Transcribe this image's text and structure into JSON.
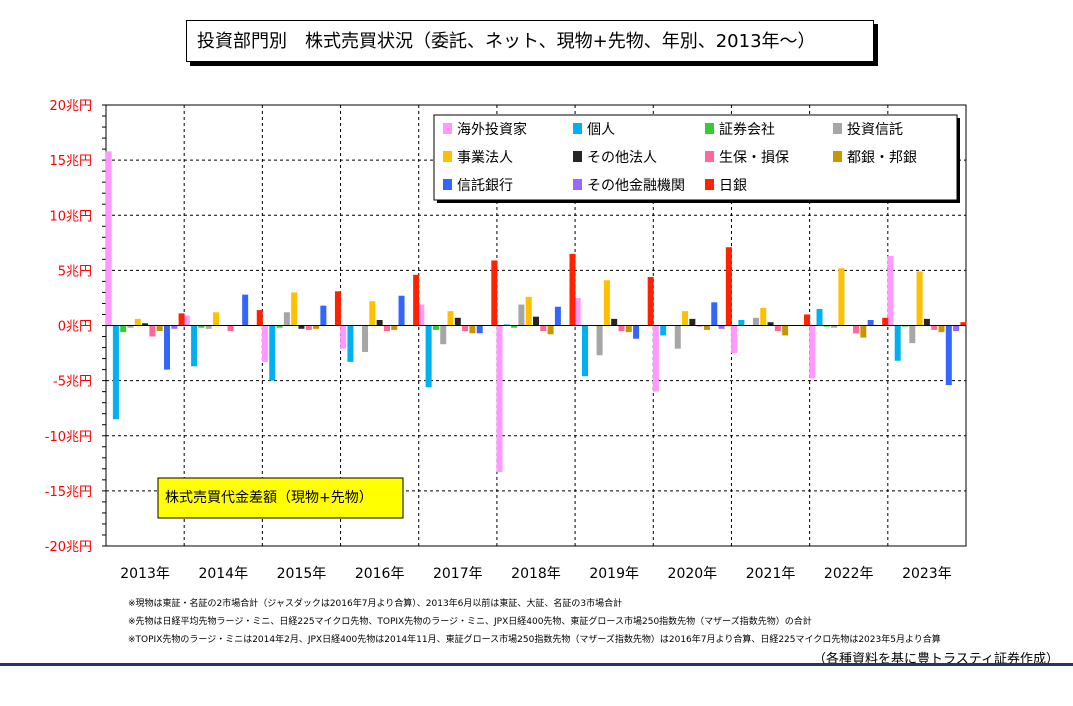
{
  "title": "投資部門別　株式売買状況（委託、ネット、現物+先物、年別、2013年～）",
  "notes": [
    "※現物は東証・名証の2市場合計（ジャスダックは2016年7月より合算）、2013年6月以前は東証、大証、名証の3市場合計",
    "※先物は日経平均先物ラージ・ミニ、日経225マイクロ先物、TOPIX先物のラージ・ミニ、JPX日経400先物、東証グロース市場250指数先物（マザーズ指数先物）の合計",
    "※TOPIX先物のラージ・ミニは2014年2月、JPX日経400先物は2014年11月、東証グロース市場250指数先物（マザーズ指数先物）は2016年7月より合算、日経225マイクロ先物は2023年5月より合算"
  ],
  "source": "（各種資料を基に豊トラスティ証券作成）",
  "chart_data": {
    "type": "bar",
    "annotation": "株式売買代金差額（現物+先物）",
    "ylim": [
      -20,
      20
    ],
    "yticks": [
      {
        "v": 20,
        "label": "20兆円"
      },
      {
        "v": 15,
        "label": "15兆円"
      },
      {
        "v": 10,
        "label": "10兆円"
      },
      {
        "v": 5,
        "label": "5兆円"
      },
      {
        "v": 0,
        "label": "0兆円"
      },
      {
        "v": -5,
        "label": "-5兆円"
      },
      {
        "v": -10,
        "label": "-10兆円"
      },
      {
        "v": -15,
        "label": "-15兆円"
      },
      {
        "v": -20,
        "label": "-20兆円"
      }
    ],
    "grid": true,
    "legend_position": "top-right",
    "categories": [
      "2013年",
      "2014年",
      "2015年",
      "2016年",
      "2017年",
      "2018年",
      "2019年",
      "2020年",
      "2021年",
      "2022年",
      "2023年"
    ],
    "series": [
      {
        "name": "海外投資家",
        "color": "#ff99ff",
        "values": [
          15.8,
          0.9,
          -3.3,
          -2.1,
          1.9,
          -13.3,
          2.5,
          -6.0,
          -2.5,
          -4.8,
          6.3
        ]
      },
      {
        "name": "個人",
        "color": "#00b0f0",
        "values": [
          -8.5,
          -3.7,
          -5.0,
          -3.3,
          -5.6,
          0.1,
          -4.6,
          -0.9,
          0.5,
          1.5,
          -3.2
        ]
      },
      {
        "name": "証券会社",
        "color": "#33cc33",
        "values": [
          -0.6,
          -0.2,
          -0.2,
          0.0,
          -0.4,
          -0.2,
          0.0,
          0.0,
          0.0,
          -0.1,
          -0.1
        ]
      },
      {
        "name": "投資信託",
        "color": "#a6a6a6",
        "values": [
          -0.2,
          -0.3,
          1.2,
          -2.4,
          -1.7,
          1.9,
          -2.7,
          -2.1,
          0.7,
          -0.2,
          -1.6
        ]
      },
      {
        "name": "事業法人",
        "color": "#ffc000",
        "values": [
          0.6,
          1.2,
          3.0,
          2.2,
          1.3,
          2.6,
          4.1,
          1.3,
          1.6,
          5.2,
          4.9
        ]
      },
      {
        "name": "その他法人",
        "color": "#262626",
        "values": [
          0.2,
          0.0,
          -0.3,
          0.5,
          0.7,
          0.8,
          0.6,
          0.6,
          0.3,
          0.0,
          0.6
        ]
      },
      {
        "name": "生保・損保",
        "color": "#ff6699",
        "values": [
          -1.0,
          -0.5,
          -0.4,
          -0.5,
          -0.5,
          -0.5,
          -0.5,
          -0.1,
          -0.5,
          -0.7,
          -0.4
        ]
      },
      {
        "name": "都銀・邦銀",
        "color": "#c89600",
        "values": [
          -0.5,
          0.0,
          -0.3,
          -0.4,
          -0.7,
          -0.8,
          -0.6,
          -0.4,
          -0.9,
          -1.1,
          -0.6
        ]
      },
      {
        "name": "信託銀行",
        "color": "#3366ff",
        "values": [
          -4.0,
          2.8,
          1.8,
          2.7,
          -0.7,
          1.7,
          -1.2,
          2.1,
          0.0,
          0.5,
          -5.4
        ]
      },
      {
        "name": "その他金融機関",
        "color": "#9966ff",
        "values": [
          -0.3,
          0.0,
          0.0,
          0.0,
          0.0,
          0.0,
          0.0,
          -0.3,
          0.0,
          0.0,
          -0.5
        ]
      },
      {
        "name": "日銀",
        "color": "#ff2200",
        "values": [
          1.1,
          1.4,
          3.1,
          4.6,
          5.9,
          6.5,
          4.4,
          7.1,
          1.0,
          0.7,
          0.3
        ]
      }
    ]
  }
}
